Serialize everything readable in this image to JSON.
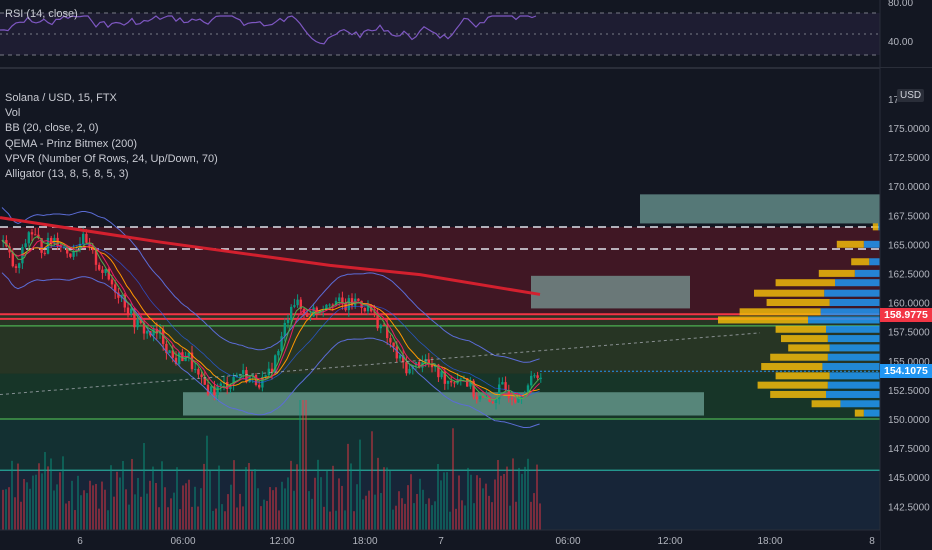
{
  "rsi": {
    "label": "RSI (14, close)",
    "ticks": [
      "80.00",
      "40.00"
    ]
  },
  "legend": {
    "symbol": "Solana / USD, 15, FTX",
    "items": [
      "Vol",
      "BB (20, close, 2, 0)",
      "QEMA - Prinz Bitmex (200)",
      "VPVR (Number Of Rows, 24, Up/Down, 70)",
      "Alligator (13, 8, 5, 8, 5, 3)"
    ]
  },
  "axis": {
    "currency": "USD",
    "partial_top_label": "17"
  },
  "price_tags": [
    {
      "value": "158.9775",
      "color": "#f23645"
    },
    {
      "value": "154.1075",
      "color": "#2196f3"
    }
  ],
  "chart_data": {
    "type": "candlestick",
    "y_ticks": [
      142.5,
      145,
      147.5,
      150,
      152.5,
      155,
      157.5,
      160,
      162.5,
      165,
      167.5,
      170,
      172.5,
      175
    ],
    "y_tick_labels": [
      "142.5000",
      "145.0000",
      "147.5000",
      "150.0000",
      "152.5000",
      "155.0000",
      "157.5000",
      "160.0000",
      "162.5000",
      "165.0000",
      "167.5000",
      "170.0000",
      "172.5000",
      "175.0000"
    ],
    "x_tick_labels": [
      "6",
      "06:00",
      "12:00",
      "18:00",
      "7",
      "06:00",
      "12:00",
      "18:00",
      "8"
    ],
    "close_path": [
      165.2,
      162.5,
      166.3,
      164.6,
      165.6,
      164.2,
      165.5,
      163.7,
      162.0,
      160.6,
      158.4,
      157.4,
      157.2,
      155.0,
      155.6,
      153.1,
      152.4,
      153.0,
      154.0,
      153.4,
      153.2,
      155.9,
      160.3,
      159.0,
      159.5,
      160.4,
      159.6,
      160.2,
      159.3,
      157.6,
      155.3,
      154.1,
      155.2,
      154.0,
      153.3,
      153.8,
      152.0,
      151.3,
      152.7,
      152.0,
      152.9,
      154.1
    ],
    "ranges": {
      "red_zone": [
        158.9,
        166.5
      ],
      "green_zone_upper": [
        153.9,
        158.9
      ],
      "green_zone_lower": [
        150.0,
        153.9
      ],
      "teal_zone": [
        145.6,
        150.0
      ],
      "blue_zone": [
        141.0,
        145.6
      ]
    },
    "levels": {
      "red_lines": [
        159.0,
        158.6
      ],
      "dashed_white": [
        166.5,
        164.6
      ],
      "green_lines": [
        158.0,
        150.0
      ],
      "teal_line": 145.6
    },
    "boxes": [
      {
        "y1": 169.3,
        "y2": 166.8
      },
      {
        "y1": 162.3,
        "y2": 159.5
      },
      {
        "y1": 152.3,
        "y2": 150.3
      }
    ],
    "qema_line": [
      [
        167.3,
        0
      ],
      [
        165.2,
        0.3
      ],
      [
        163.0,
        0.6
      ],
      [
        161.0,
        0.82
      ]
    ],
    "vpvr": [
      {
        "price": 166.5,
        "up": 6,
        "down": 2,
        "upColor": "#f0b90b",
        "downColor": "#2196f3"
      },
      {
        "price": 165.0,
        "up": 30,
        "down": 18
      },
      {
        "price": 163.5,
        "up": 20,
        "down": 12
      },
      {
        "price": 162.5,
        "up": 40,
        "down": 28
      },
      {
        "price": 161.7,
        "up": 66,
        "down": 50
      },
      {
        "price": 160.8,
        "up": 78,
        "down": 62
      },
      {
        "price": 160.0,
        "up": 70,
        "down": 56
      },
      {
        "price": 159.2,
        "up": 90,
        "down": 66
      },
      {
        "price": 158.5,
        "up": 100,
        "down": 80
      },
      {
        "price": 157.7,
        "up": 56,
        "down": 60
      },
      {
        "price": 156.9,
        "up": 52,
        "down": 58
      },
      {
        "price": 156.1,
        "up": 46,
        "down": 56
      },
      {
        "price": 155.3,
        "up": 64,
        "down": 58
      },
      {
        "price": 154.5,
        "up": 68,
        "down": 64
      },
      {
        "price": 153.7,
        "up": 60,
        "down": 56
      },
      {
        "price": 152.9,
        "up": 78,
        "down": 58
      },
      {
        "price": 152.1,
        "up": 62,
        "down": 60
      },
      {
        "price": 151.3,
        "up": 32,
        "down": 44
      },
      {
        "price": 150.5,
        "up": 10,
        "down": 18
      }
    ]
  }
}
